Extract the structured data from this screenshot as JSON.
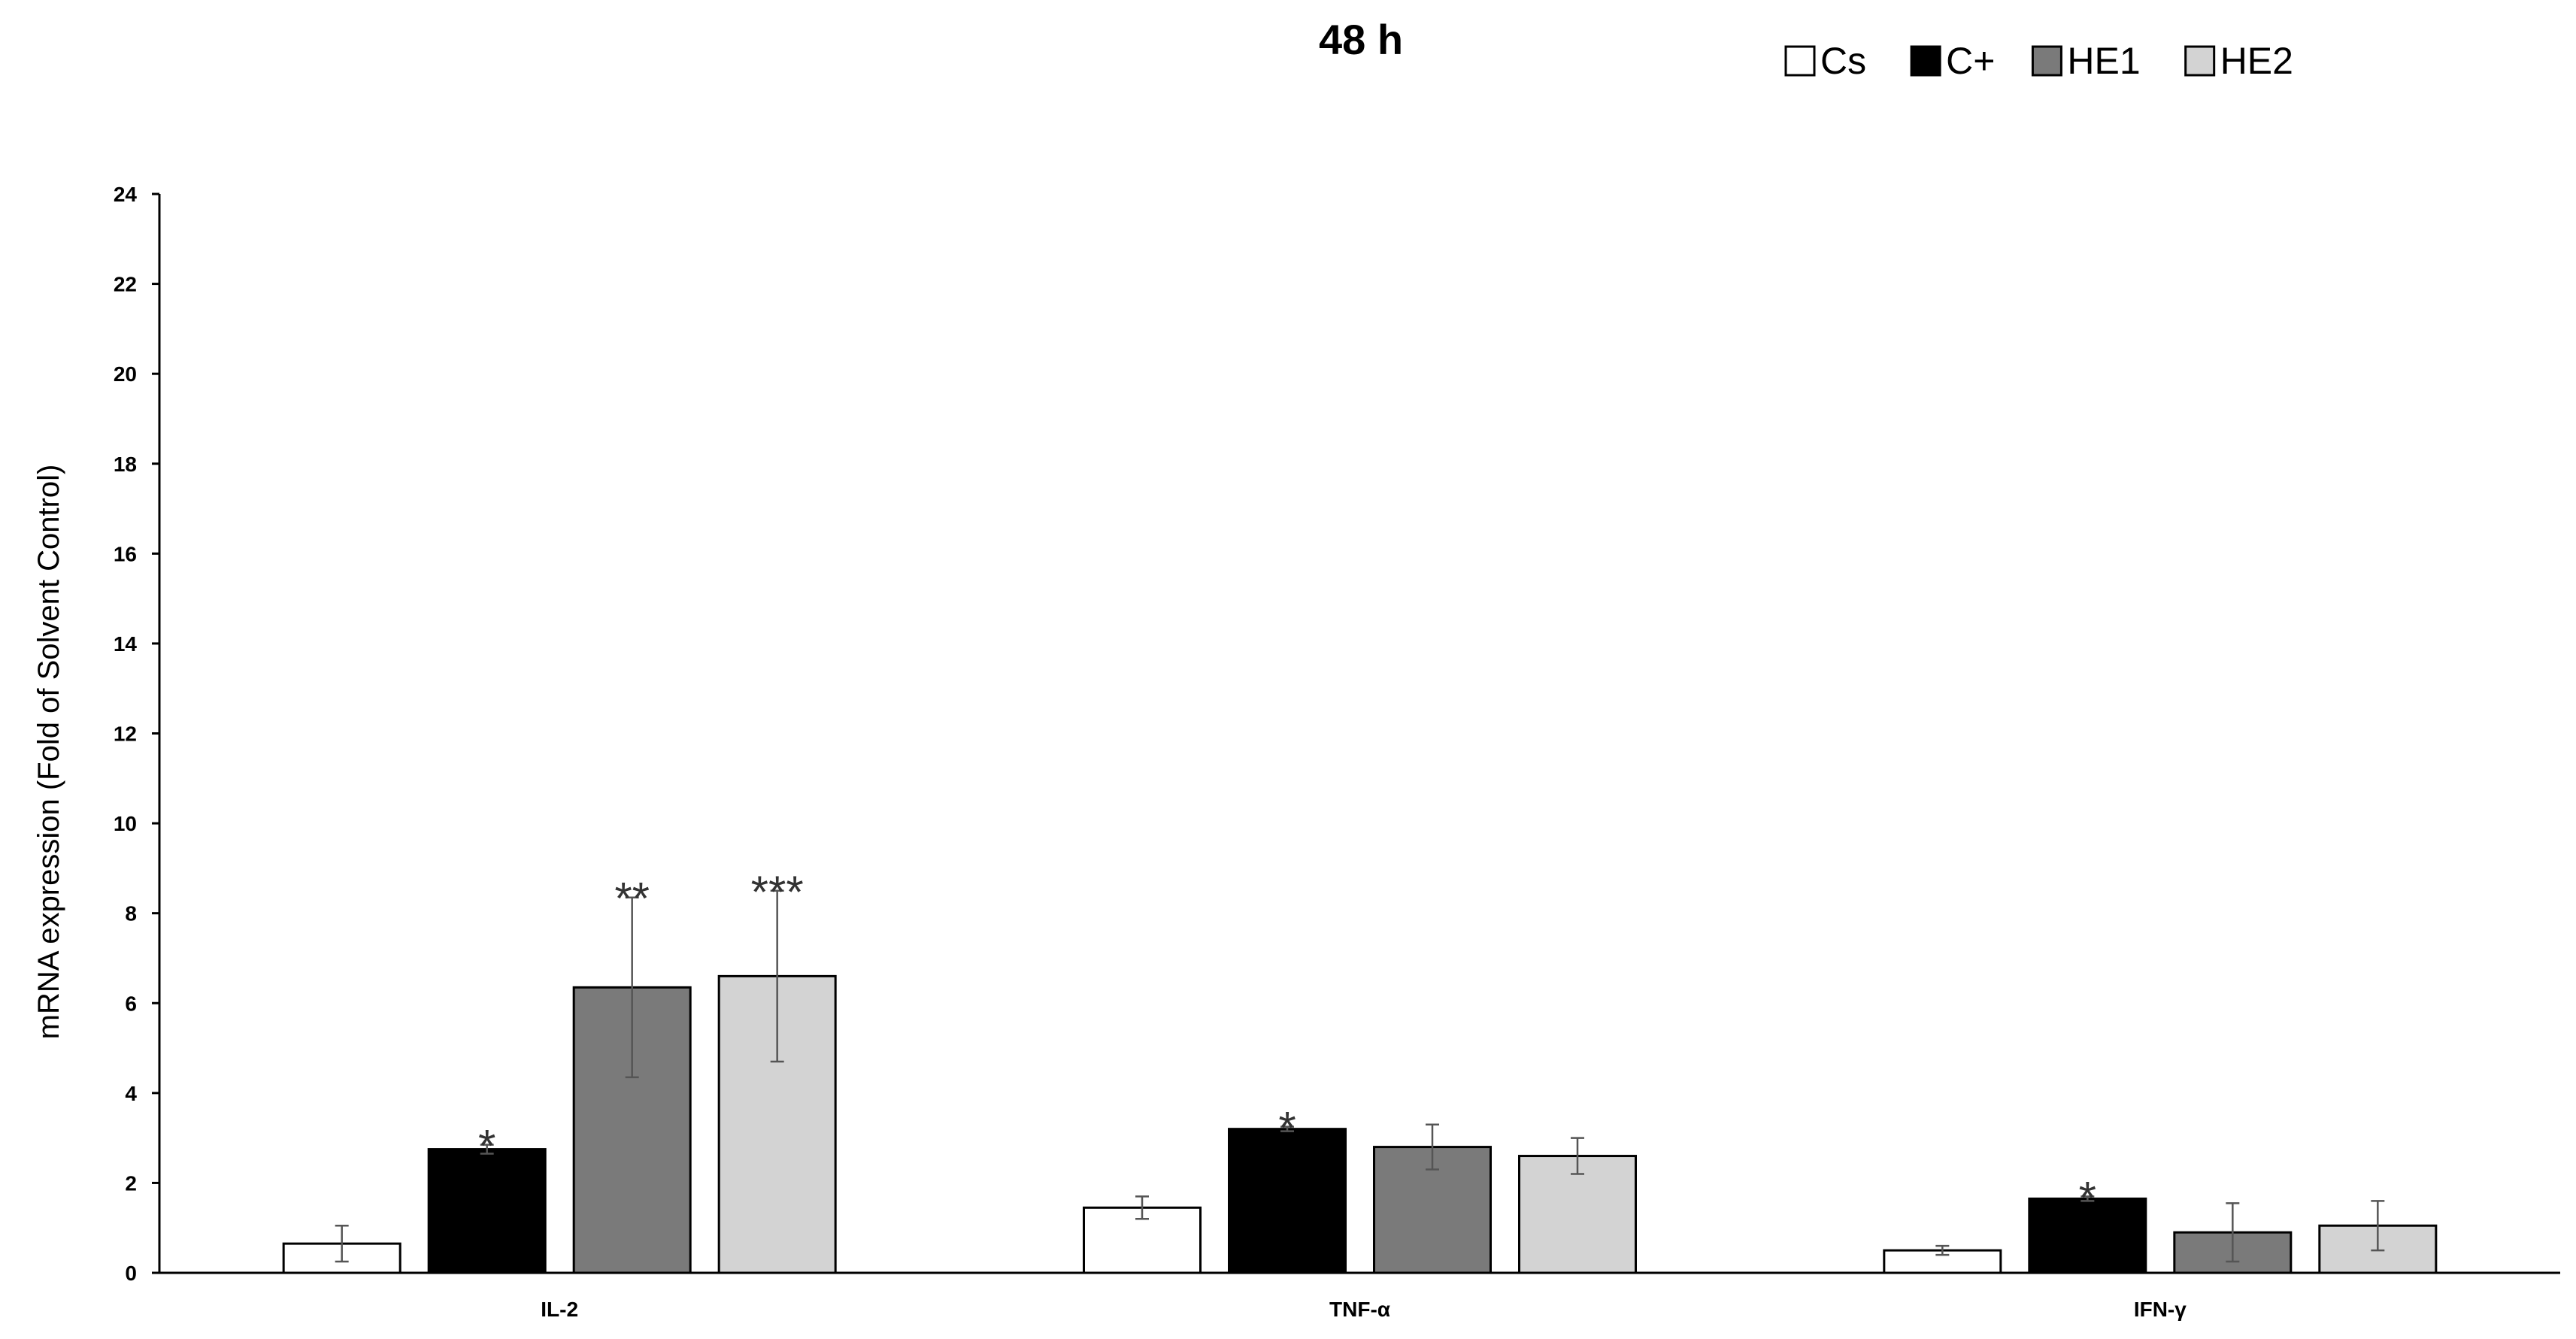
{
  "chart_data": {
    "type": "bar",
    "title": "48 h",
    "ylabel": "mRNA expression (Fold of Solvent Control)",
    "xlabel": "",
    "ylim": [
      0,
      24
    ],
    "yticks": [
      0,
      2,
      4,
      6,
      8,
      10,
      12,
      14,
      16,
      18,
      20,
      22,
      24
    ],
    "ytick_labels": [
      "0",
      "2",
      "4",
      "6",
      "8",
      "10",
      "12",
      "14",
      "16",
      "18",
      "20",
      "22",
      "24"
    ],
    "grid": false,
    "legend_position": "top-right",
    "categories": [
      "IL-2",
      "TNF-α",
      "IFN-γ"
    ],
    "series": [
      {
        "name": "Cs",
        "color": "#ffffff",
        "values": [
          0.65,
          1.45,
          0.5
        ],
        "errors": [
          0.4,
          0.25,
          0.1
        ],
        "significance": [
          "",
          "",
          ""
        ]
      },
      {
        "name": "C+",
        "color": "#000000",
        "values": [
          2.75,
          3.2,
          1.65
        ],
        "errors": [
          0.1,
          0.05,
          0.05
        ],
        "significance": [
          "*",
          "*",
          "*"
        ]
      },
      {
        "name": "HE1",
        "color": "#7a7a7a",
        "values": [
          6.35,
          2.8,
          0.9
        ],
        "errors": [
          2.0,
          0.5,
          0.65
        ],
        "significance": [
          "**",
          "",
          ""
        ]
      },
      {
        "name": "HE2",
        "color": "#d3d3d3",
        "values": [
          6.6,
          2.6,
          1.05
        ],
        "errors": [
          1.9,
          0.4,
          0.55
        ],
        "significance": [
          "***",
          "",
          ""
        ]
      }
    ]
  }
}
